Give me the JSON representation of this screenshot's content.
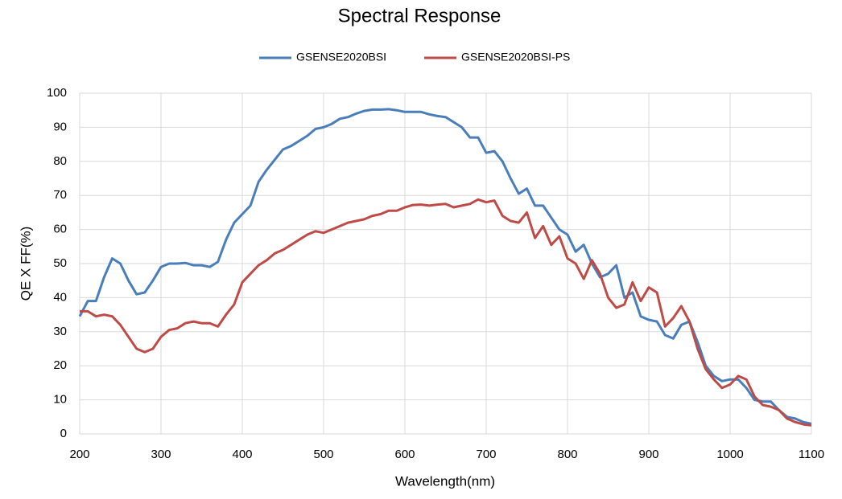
{
  "chart_data": {
    "type": "line",
    "title": "Spectral Response",
    "x_label": "Wavelength(nm)",
    "y_label": "QE X FF(%)",
    "x": [
      200,
      210,
      220,
      230,
      240,
      250,
      260,
      270,
      280,
      290,
      300,
      310,
      320,
      330,
      340,
      350,
      360,
      370,
      380,
      390,
      400,
      410,
      420,
      430,
      440,
      450,
      460,
      470,
      480,
      490,
      500,
      510,
      520,
      530,
      540,
      550,
      560,
      570,
      580,
      590,
      600,
      610,
      620,
      630,
      640,
      650,
      660,
      670,
      680,
      690,
      700,
      710,
      720,
      730,
      740,
      750,
      760,
      770,
      780,
      790,
      800,
      810,
      820,
      830,
      840,
      850,
      860,
      870,
      880,
      890,
      900,
      910,
      920,
      930,
      940,
      950,
      960,
      970,
      980,
      990,
      1000,
      1010,
      1020,
      1030,
      1040,
      1050,
      1060,
      1070,
      1080,
      1090,
      1100
    ],
    "series": [
      {
        "name": "GSENSE2020BSI",
        "color": "#4a7ebb",
        "values": [
          34.5,
          39,
          39,
          46,
          51.5,
          50,
          45,
          41,
          41.5,
          45,
          49,
          50,
          50,
          50.2,
          49.5,
          49.5,
          49,
          50.5,
          57,
          62,
          64.5,
          67,
          74,
          77.5,
          80.5,
          83.5,
          84.5,
          86,
          87.5,
          89.5,
          90,
          91,
          92.5,
          93,
          94,
          94.8,
          95.2,
          95.2,
          95.3,
          95,
          94.5,
          94.5,
          94.5,
          93.8,
          93.3,
          93,
          91.5,
          90,
          87,
          87,
          82.5,
          83,
          80,
          75,
          70.5,
          72,
          67,
          67,
          63.5,
          60,
          58.5,
          53.5,
          55.5,
          50,
          46,
          47,
          49.5,
          40,
          41.5,
          34.5,
          33.5,
          33,
          29,
          28,
          32,
          33,
          27,
          20,
          17,
          15.5,
          16,
          16,
          13.5,
          10,
          9.5,
          9.5,
          7,
          5,
          4.5,
          3.5,
          3
        ]
      },
      {
        "name": "GSENSE2020BSI-PS",
        "color": "#be4b48",
        "values": [
          36,
          36,
          34.5,
          35,
          34.5,
          32,
          28.5,
          25,
          24,
          25,
          28.5,
          30.5,
          31,
          32.5,
          33,
          32.5,
          32.5,
          31.5,
          35,
          38,
          44.5,
          47,
          49.5,
          51,
          53,
          54,
          55.5,
          57,
          58.5,
          59.5,
          59,
          60,
          61,
          62,
          62.5,
          63,
          64,
          64.5,
          65.5,
          65.5,
          66.5,
          67.2,
          67.3,
          67,
          67.3,
          67.5,
          66.5,
          67,
          67.5,
          68.8,
          68,
          68.5,
          64,
          62.5,
          62,
          65,
          57.5,
          61,
          55.5,
          58,
          51.5,
          50,
          45.5,
          51,
          47,
          40,
          37,
          38,
          44.5,
          39,
          43,
          41.5,
          31.5,
          34,
          37.5,
          33,
          25,
          19,
          16,
          13.5,
          14.5,
          17,
          16,
          11,
          8.5,
          8,
          7,
          4.5,
          3.5,
          2.8,
          2.5
        ]
      }
    ],
    "xlim": [
      200,
      1100
    ],
    "xticks": [
      200,
      300,
      400,
      500,
      600,
      700,
      800,
      900,
      1000,
      1100
    ],
    "ylim": [
      0,
      100
    ],
    "yticks": [
      0,
      10,
      20,
      30,
      40,
      50,
      60,
      70,
      80,
      90,
      100
    ],
    "grid": true,
    "legend": "top"
  }
}
